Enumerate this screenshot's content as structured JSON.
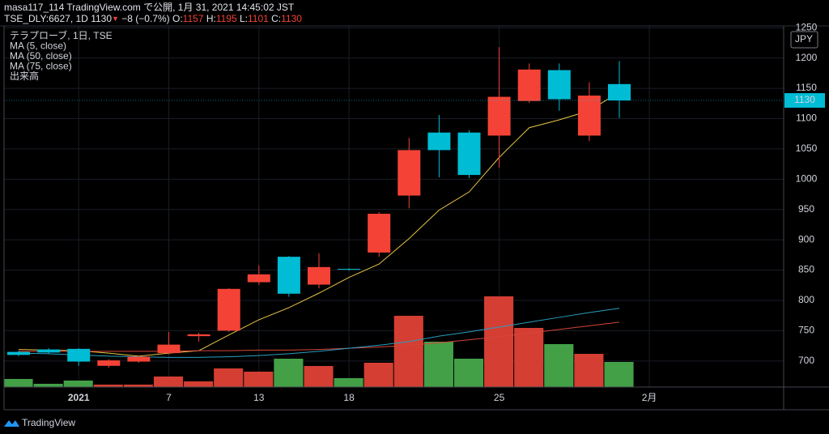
{
  "chart_data": {
    "type": "candlestick",
    "title": "masa117_114 TradingView.com で公開, 1月 31, 2021 14:45:02 JST",
    "info": {
      "symbol": "TSE_DLY:6627, 1D",
      "price": "1130",
      "arrow": "▼",
      "change": "−8 (−0.7%)",
      "o_label": "O:",
      "o": "1157",
      "h_label": "H:",
      "h": "1195",
      "l_label": "L:",
      "l": "1101",
      "c_label": "C:",
      "c": "1130"
    },
    "legend": [
      "テラプローブ, 1日, TSE",
      "出来高"
    ],
    "currency": "JPY",
    "watermark": "TradingView",
    "categories": [
      null,
      null,
      "2021",
      null,
      null,
      "7",
      null,
      null,
      "13",
      null,
      null,
      "18",
      null,
      null,
      null,
      null,
      "25",
      null,
      null,
      null,
      null,
      "2月"
    ],
    "open": [
      715,
      719,
      720,
      692,
      699,
      713,
      741,
      750,
      830,
      872,
      826,
      852,
      879,
      973,
      1077,
      1077,
      1072,
      1129,
      1180,
      1072,
      1157,
      null
    ],
    "high": [
      717,
      721,
      721,
      703,
      709,
      748,
      747,
      820,
      858,
      873,
      878,
      853,
      946,
      1068,
      1106,
      1081,
      1218,
      1191,
      1191,
      1160,
      1195,
      null
    ],
    "low": [
      708,
      712,
      692,
      689,
      697,
      711,
      732,
      748,
      826,
      806,
      820,
      849,
      872,
      952,
      1003,
      1002,
      1019,
      1126,
      1113,
      1063,
      1101,
      null
    ],
    "close": [
      710,
      714,
      699,
      701,
      707,
      727,
      744,
      819,
      843,
      811,
      855,
      851,
      943,
      1048,
      1048,
      1007,
      1136,
      1181,
      1132,
      1138,
      1130,
      null
    ],
    "up_color": "#f44336",
    "down_color": "#00bcd4",
    "volume": [
      10,
      4,
      8,
      3,
      3,
      13,
      7,
      23,
      19,
      35,
      26,
      11,
      30,
      88,
      56,
      35,
      112,
      73,
      53,
      41,
      31,
      null
    ],
    "volume_up_color": "#d43e33",
    "volume_down_color": "#43a047",
    "volume_lim": [
      0,
      446
    ],
    "series": [
      {
        "name": "MA (5, close)",
        "color": "#e8c547",
        "values": [
          719,
          718,
          717,
          713,
          708,
          713,
          717,
          743,
          768,
          788,
          812,
          838,
          860,
          902,
          949,
          979,
          1036,
          1085,
          1098,
          1113,
          1144,
          null
        ]
      },
      {
        "name": "MA (50, close)",
        "color": "#d6453a",
        "values": [
          716,
          716,
          716,
          716,
          716,
          716,
          717,
          717,
          718,
          718,
          719,
          721,
          723,
          726,
          730,
          735,
          740,
          746,
          752,
          758,
          764,
          null
        ]
      },
      {
        "name": "MA (75, close)",
        "color": "#26a0c0",
        "values": [
          713,
          712,
          710,
          708,
          707,
          706,
          706,
          707,
          709,
          712,
          716,
          721,
          726,
          732,
          741,
          748,
          756,
          764,
          772,
          780,
          787,
          null
        ]
      }
    ],
    "last_value": 1130,
    "ylim": [
      657,
      1253
    ],
    "yticks": [
      700,
      750,
      800,
      850,
      900,
      950,
      1000,
      1050,
      1100,
      1150,
      1200,
      1250
    ],
    "grid": true
  }
}
